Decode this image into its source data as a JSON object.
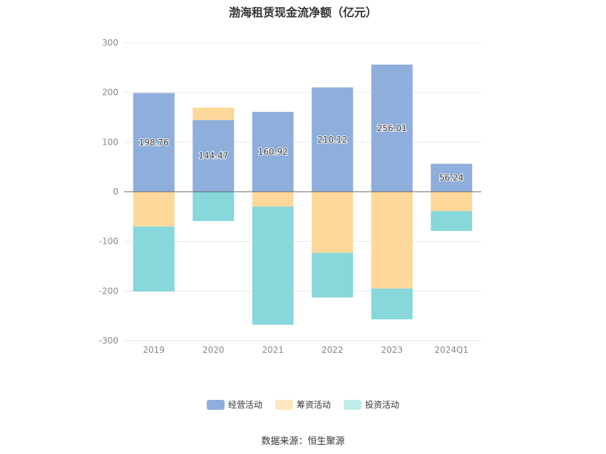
{
  "title": "渤海租赁现金流净额（亿元）",
  "source": "数据来源：恒生聚源",
  "chart_data": {
    "type": "bar",
    "stacked": true,
    "title": "渤海租赁现金流净额（亿元）",
    "categories": [
      "2019",
      "2020",
      "2021",
      "2022",
      "2023",
      "2024Q1"
    ],
    "ylim": [
      -300,
      300
    ],
    "yticks": [
      300,
      200,
      100,
      0,
      -100,
      -200,
      -300
    ],
    "grid": true,
    "legend_position": "bottom",
    "series": [
      {
        "name": "经营活动",
        "color": "#8eaedb",
        "values": [
          198.76,
          144.47,
          160.92,
          210.12,
          256.01,
          56.24
        ],
        "labels": [
          "198.76",
          "144.47",
          "160.92",
          "210.12",
          "256.01",
          "56.24"
        ]
      },
      {
        "name": "筹资活动",
        "color": "#fdd89a",
        "values": [
          -70,
          25,
          -30,
          -123,
          -195,
          -39
        ]
      },
      {
        "name": "投资活动",
        "color": "#88d7da",
        "values": [
          -131,
          -59,
          -238,
          -90,
          -62,
          -40
        ]
      }
    ],
    "legend_colors": [
      "#8eaedb",
      "#fde6c0",
      "#c1eaea"
    ]
  }
}
